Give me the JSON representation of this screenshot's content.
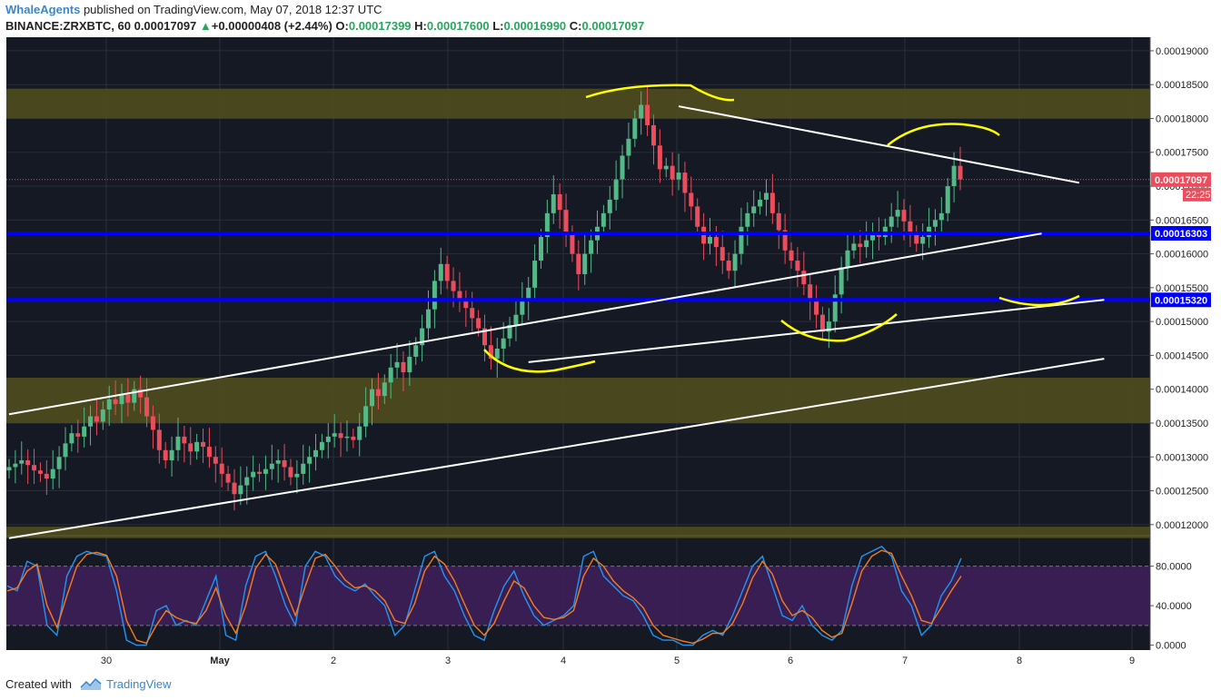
{
  "header": {
    "author": "WhaleAgents",
    "published_text": " published on TradingView.com, May 07, 2018 12:37 UTC",
    "symbol": "BINANCE:ZRXBTC, 60",
    "last": "0.00017097",
    "change": "+0.00000408 (+2.44%)",
    "o_label": "O:",
    "o": "0.00017399",
    "h_label": "H:",
    "h": "0.00017600",
    "l_label": "L:",
    "l": "0.00016990",
    "c_label": "C:",
    "c": "0.00017097"
  },
  "footer": {
    "created_with": "Created with",
    "brand": "TradingView"
  },
  "colors": {
    "background": "#151924",
    "up": "#53b987",
    "down": "#eb4d5c",
    "zone": "#4d4b1e",
    "support_line": "#0000ff",
    "annotation": "#ffff00",
    "trendline": "#ffffff",
    "stoch_k": "#2196f3",
    "stoch_d": "#f57c1f",
    "stoch_band": "#3d1f5a"
  },
  "chart_data": [
    {
      "type": "candlestick",
      "title": "BINANCE:ZRXBTC, 60",
      "xlabel": "",
      "ylabel": "",
      "x_ticks": [
        "30",
        "May",
        "2",
        "3",
        "4",
        "5",
        "6",
        "7",
        "8",
        "9"
      ],
      "y_ticks": [
        "0.00012000",
        "0.00012500",
        "0.00013000",
        "0.00013500",
        "0.00014000",
        "0.00014500",
        "0.00015000",
        "0.00015500",
        "0.00016000",
        "0.00016500",
        "0.00017000",
        "0.00017500",
        "0.00018000",
        "0.00018500",
        "0.00019000"
      ],
      "ylim": [
        0.0001185,
        0.000192
      ],
      "grid": true,
      "current_price": "0.00017097",
      "countdown": "22:25",
      "price_marks": [
        {
          "label": "0.00016303",
          "value": 0.00016303
        },
        {
          "label": "0.00015320",
          "value": 0.0001532
        }
      ],
      "zones": [
        {
          "from": 0.00018,
          "to": 0.0001844
        },
        {
          "from": 0.000135,
          "to": 0.0001417
        },
        {
          "from": 0.000118,
          "to": 0.0001197
        }
      ],
      "candles_ohlc_close_path": [
        0.0001285,
        0.000129,
        0.0001295,
        0.0001288,
        0.000128,
        0.0001275,
        0.0001268,
        0.0001282,
        0.00013,
        0.000132,
        0.0001335,
        0.000133,
        0.0001345,
        0.000136,
        0.0001352,
        0.000137,
        0.0001385,
        0.0001378,
        0.0001392,
        0.000138,
        0.00014,
        0.0001388,
        0.000136,
        0.000134,
        0.000131,
        0.0001295,
        0.000131,
        0.000133,
        0.000132,
        0.0001308,
        0.0001322,
        0.0001315,
        0.00013,
        0.000129,
        0.0001275,
        0.0001262,
        0.0001245,
        0.0001258,
        0.000127,
        0.0001278,
        0.0001275,
        0.0001282,
        0.000129,
        0.0001295,
        0.0001285,
        0.000127,
        0.0001275,
        0.000129,
        0.00013,
        0.000131,
        0.0001322,
        0.000133,
        0.0001335,
        0.0001328,
        0.000133,
        0.0001325,
        0.0001345,
        0.0001375,
        0.00014,
        0.000139,
        0.000141,
        0.0001432,
        0.000144,
        0.0001425,
        0.0001448,
        0.0001465,
        0.000149,
        0.0001518,
        0.000156,
        0.0001585,
        0.000156,
        0.0001545,
        0.000153,
        0.000152,
        0.0001505,
        0.000149,
        0.0001465,
        0.0001445,
        0.000146,
        0.0001475,
        0.0001495,
        0.000151,
        0.000153,
        0.000155,
        0.000159,
        0.0001625,
        0.000166,
        0.0001688,
        0.0001665,
        0.000163,
        0.00016,
        0.000157,
        0.00016,
        0.000162,
        0.000164,
        0.000166,
        0.000168,
        0.000171,
        0.0001745,
        0.000177,
        0.00018,
        0.000182,
        0.000179,
        0.000176,
        0.0001725,
        0.000173,
        0.000171,
        0.000172,
        0.000169,
        0.000167,
        0.000164,
        0.0001615,
        0.0001625,
        0.000161,
        0.000159,
        0.0001575,
        0.00016,
        0.000164,
        0.000166,
        0.000167,
        0.000168,
        0.000169,
        0.000166,
        0.0001635,
        0.0001605,
        0.000159,
        0.0001575,
        0.0001555,
        0.000153,
        0.000151,
        0.0001485,
        0.00015,
        0.000154,
        0.000158,
        0.0001605,
        0.0001615,
        0.000161,
        0.000162,
        0.000163,
        0.0001625,
        0.000164,
        0.0001655,
        0.0001665,
        0.0001648,
        0.000163,
        0.0001615,
        0.0001625,
        0.000164,
        0.000165,
        0.000166,
        0.00017,
        0.000173,
        0.000171
      ]
    },
    {
      "type": "line",
      "title": "Stochastic RSI",
      "y_ticks": [
        "80.0000",
        "40.0000",
        "0.0000"
      ],
      "ylim": [
        -5,
        110
      ],
      "band": [
        20,
        80
      ],
      "series": [
        {
          "values": [
            60,
            55,
            85,
            80,
            20,
            10,
            70,
            90,
            95,
            92,
            90,
            55,
            5,
            0,
            0,
            35,
            40,
            20,
            25,
            20,
            45,
            70,
            10,
            5,
            60,
            90,
            95,
            70,
            40,
            20,
            80,
            95,
            90,
            70,
            60,
            55,
            62,
            50,
            40,
            10,
            20,
            55,
            90,
            95,
            70,
            55,
            30,
            10,
            5,
            35,
            60,
            75,
            50,
            30,
            20,
            25,
            30,
            40,
            90,
            95,
            70,
            60,
            50,
            45,
            30,
            10,
            5,
            5,
            0,
            0,
            10,
            15,
            10,
            30,
            55,
            80,
            90,
            60,
            30,
            25,
            40,
            20,
            10,
            5,
            15,
            60,
            90,
            95,
            100,
            90,
            55,
            40,
            10,
            20,
            50,
            65,
            88
          ]
        },
        {
          "values": [
            55,
            58,
            75,
            82,
            40,
            18,
            50,
            80,
            92,
            94,
            91,
            70,
            25,
            5,
            2,
            20,
            35,
            28,
            24,
            22,
            35,
            58,
            30,
            12,
            40,
            78,
            92,
            82,
            55,
            30,
            60,
            88,
            92,
            80,
            66,
            58,
            60,
            55,
            45,
            25,
            22,
            42,
            75,
            90,
            82,
            65,
            42,
            20,
            10,
            22,
            45,
            65,
            58,
            40,
            28,
            26,
            28,
            35,
            70,
            88,
            80,
            65,
            55,
            48,
            38,
            20,
            10,
            7,
            4,
            2,
            6,
            12,
            12,
            22,
            42,
            68,
            85,
            72,
            45,
            30,
            35,
            28,
            15,
            8,
            12,
            42,
            75,
            90,
            96,
            93,
            70,
            50,
            25,
            22,
            38,
            55,
            70
          ]
        }
      ]
    }
  ]
}
